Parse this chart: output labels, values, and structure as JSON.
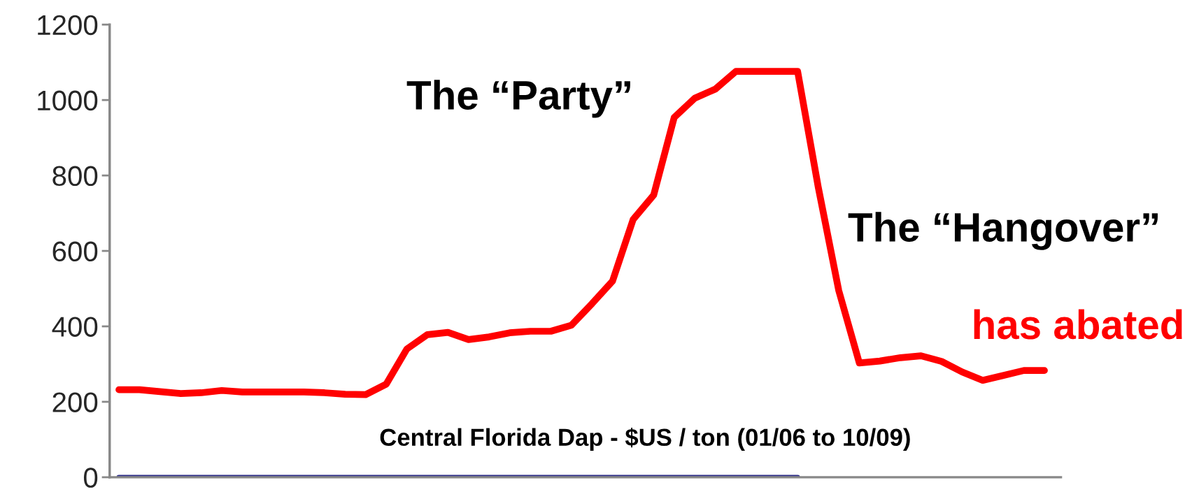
{
  "chart_data": {
    "type": "line",
    "categories": [
      null,
      null,
      null,
      null,
      null,
      null,
      null,
      null,
      null,
      null,
      null,
      null,
      null,
      null,
      null,
      null,
      null,
      null,
      null,
      null,
      null,
      null,
      null,
      null,
      null,
      null,
      null,
      null,
      null,
      null,
      null,
      null,
      null,
      null,
      null,
      null,
      null,
      null,
      null,
      null,
      null,
      null,
      null,
      null,
      null,
      null
    ],
    "series": [
      {
        "color": "#ff0000",
        "values": [
          232,
          232,
          227,
          222,
          224,
          230,
          226,
          226,
          226,
          226,
          224,
          220,
          219,
          247,
          340,
          378,
          384,
          365,
          372,
          383,
          387,
          387,
          403,
          460,
          520,
          683,
          748,
          954,
          1005,
          1029,
          1076,
          1076,
          1076,
          1076,
          770,
          495,
          303,
          308,
          317,
          322,
          307,
          279,
          257,
          270,
          283,
          283
        ]
      },
      {
        "color": "#2e2e8a",
        "values": [
          0,
          0,
          0,
          0,
          0,
          0,
          0,
          0,
          0,
          0,
          0,
          0,
          0,
          0,
          0,
          0,
          0,
          0,
          0,
          0,
          0,
          0,
          0,
          0,
          0,
          0,
          0,
          0,
          0,
          0,
          0,
          0,
          0,
          0,
          null,
          null,
          null,
          null,
          null,
          null,
          null,
          null,
          null,
          null,
          null,
          null
        ]
      }
    ],
    "ylim": [
      0,
      1200
    ],
    "yticks": [
      0,
      200,
      400,
      600,
      800,
      1000,
      1200
    ],
    "grid": false,
    "legend": false,
    "marker": "none",
    "line_style": "solid",
    "annotations": [
      "The “Party”",
      "The “Hangover”",
      "has abated",
      "Central Florida Dap - $US / ton (01/06 to 10/09)"
    ]
  }
}
